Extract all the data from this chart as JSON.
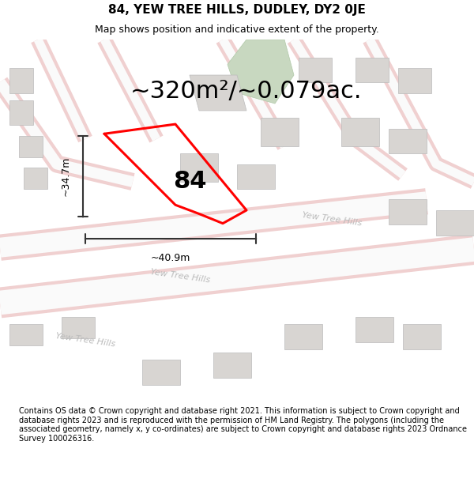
{
  "title": "84, YEW TREE HILLS, DUDLEY, DY2 0JE",
  "subtitle": "Map shows position and indicative extent of the property.",
  "footer": "Contains OS data © Crown copyright and database right 2021. This information is subject to Crown copyright and database rights 2023 and is reproduced with the permission of HM Land Registry. The polygons (including the associated geometry, namely x, y co-ordinates) are subject to Crown copyright and database rights 2023 Ordnance Survey 100026316.",
  "area_text": "~320m²/~0.079ac.",
  "width_label": "~40.9m",
  "height_label": "~34.7m",
  "number_label": "84",
  "map_bg": "#f0eeec",
  "plot_outline_color": "#ff0000",
  "dimension_color": "#333333",
  "title_fontsize": 11,
  "subtitle_fontsize": 9,
  "footer_fontsize": 7,
  "road_outer": "#f0d0d0",
  "road_inner": "#fafafa",
  "building_color": "#d8d5d2",
  "building_edge": "#bbbbbb",
  "green_fill": "#c8d8c0",
  "green_edge": "#b0c8a8",
  "road_label_color": "#bbbbbb",
  "road_label_size": 8
}
